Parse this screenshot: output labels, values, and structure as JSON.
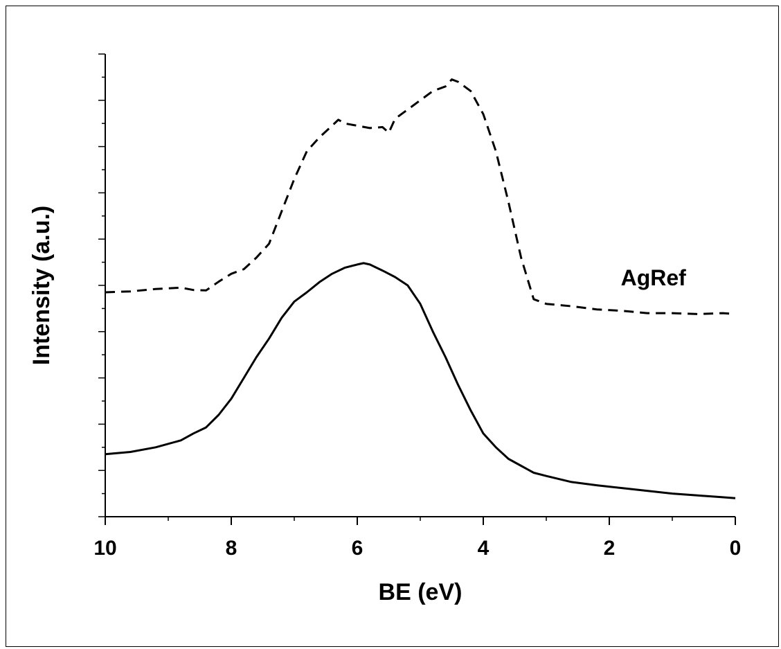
{
  "chart_data": {
    "type": "line",
    "xlabel": "BE (eV)",
    "ylabel": "Intensity (a.u.)",
    "xlim": [
      10,
      0
    ],
    "x_reversed": true,
    "ylim": [
      0,
      1
    ],
    "y_ticks_labeled": false,
    "x_ticks": [
      10,
      8,
      6,
      4,
      2,
      0
    ],
    "x_tick_labels": [
      "10",
      "8",
      "6",
      "4",
      "2",
      "0"
    ],
    "grid": false,
    "annotations": [
      {
        "text": "AgRef",
        "x": 1.3,
        "y": 0.5
      }
    ],
    "series": [
      {
        "name": "AgRef",
        "style": "dashed",
        "color": "#000000",
        "x": [
          10.0,
          9.6,
          9.2,
          8.8,
          8.6,
          8.4,
          8.2,
          8.0,
          7.8,
          7.6,
          7.4,
          7.2,
          7.0,
          6.8,
          6.6,
          6.4,
          6.3,
          6.2,
          6.0,
          5.8,
          5.6,
          5.5,
          5.4,
          5.2,
          5.0,
          4.8,
          4.6,
          4.5,
          4.4,
          4.2,
          4.0,
          3.8,
          3.6,
          3.4,
          3.2,
          3.0,
          2.6,
          2.2,
          1.8,
          1.4,
          1.0,
          0.6,
          0.2,
          0.0
        ],
        "y": [
          0.485,
          0.487,
          0.492,
          0.495,
          0.49,
          0.489,
          0.508,
          0.525,
          0.535,
          0.56,
          0.59,
          0.66,
          0.73,
          0.79,
          0.82,
          0.845,
          0.858,
          0.85,
          0.845,
          0.84,
          0.842,
          0.83,
          0.86,
          0.88,
          0.9,
          0.92,
          0.93,
          0.945,
          0.94,
          0.92,
          0.87,
          0.79,
          0.68,
          0.56,
          0.47,
          0.46,
          0.455,
          0.448,
          0.445,
          0.44,
          0.44,
          0.438,
          0.44,
          0.438
        ]
      },
      {
        "name": "",
        "style": "solid",
        "color": "#000000",
        "x": [
          10.0,
          9.6,
          9.2,
          8.8,
          8.6,
          8.4,
          8.2,
          8.0,
          7.8,
          7.6,
          7.4,
          7.2,
          7.0,
          6.8,
          6.6,
          6.4,
          6.2,
          6.0,
          5.9,
          5.8,
          5.6,
          5.4,
          5.2,
          5.0,
          4.8,
          4.6,
          4.4,
          4.2,
          4.0,
          3.8,
          3.6,
          3.4,
          3.2,
          3.0,
          2.6,
          2.2,
          1.8,
          1.4,
          1.0,
          0.6,
          0.2,
          0.0
        ],
        "y": [
          0.135,
          0.14,
          0.15,
          0.165,
          0.18,
          0.193,
          0.22,
          0.255,
          0.3,
          0.345,
          0.385,
          0.43,
          0.465,
          0.485,
          0.507,
          0.525,
          0.538,
          0.545,
          0.548,
          0.545,
          0.532,
          0.518,
          0.5,
          0.46,
          0.4,
          0.345,
          0.285,
          0.23,
          0.18,
          0.15,
          0.125,
          0.11,
          0.095,
          0.088,
          0.075,
          0.068,
          0.062,
          0.056,
          0.05,
          0.046,
          0.042,
          0.04
        ]
      }
    ]
  }
}
